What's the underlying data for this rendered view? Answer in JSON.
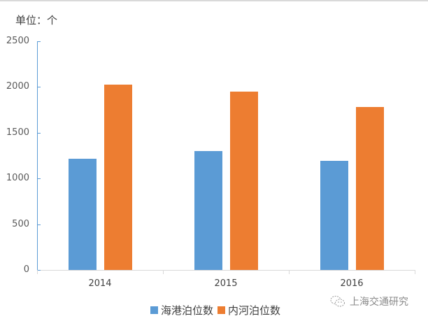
{
  "unit_label": "单位：个",
  "watermark": "上海交通研究",
  "colors": {
    "sea": "#5b9bd5",
    "river": "#ed7d31",
    "axis": "#5b9bd5",
    "grid": "#d9d9d9"
  },
  "chart_data": {
    "type": "bar",
    "title": "",
    "xlabel": "",
    "ylabel": "单位：个",
    "categories": [
      "2014",
      "2015",
      "2016"
    ],
    "series": [
      {
        "name": "海港泊位数",
        "values": [
          1216,
          1300,
          1193
        ],
        "color": "#5b9bd5"
      },
      {
        "name": "内河泊位数",
        "values": [
          2026,
          1950,
          1781
        ],
        "color": "#ed7d31"
      }
    ],
    "ylim": [
      0,
      2500
    ],
    "yticks": [
      "0",
      "500",
      "1000",
      "1500",
      "2000",
      "2500"
    ],
    "grid": false,
    "legend_position": "bottom"
  }
}
